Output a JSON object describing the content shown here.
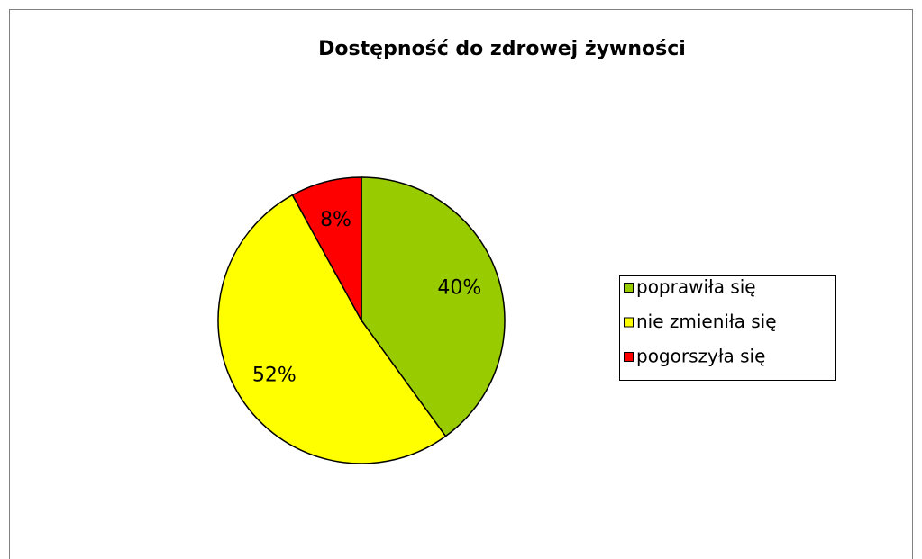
{
  "chart_data": {
    "type": "pie",
    "title": "Dostępność do zdrowej żywności",
    "categories": [
      "poprawiła się",
      "nie zmieniła się",
      "pogorszyła się"
    ],
    "values": [
      40,
      52,
      8
    ],
    "value_labels": [
      "40%",
      "52%",
      "8%"
    ],
    "colors": [
      "#99cc00",
      "#ffff00",
      "#ff0000"
    ],
    "legend": "right"
  }
}
